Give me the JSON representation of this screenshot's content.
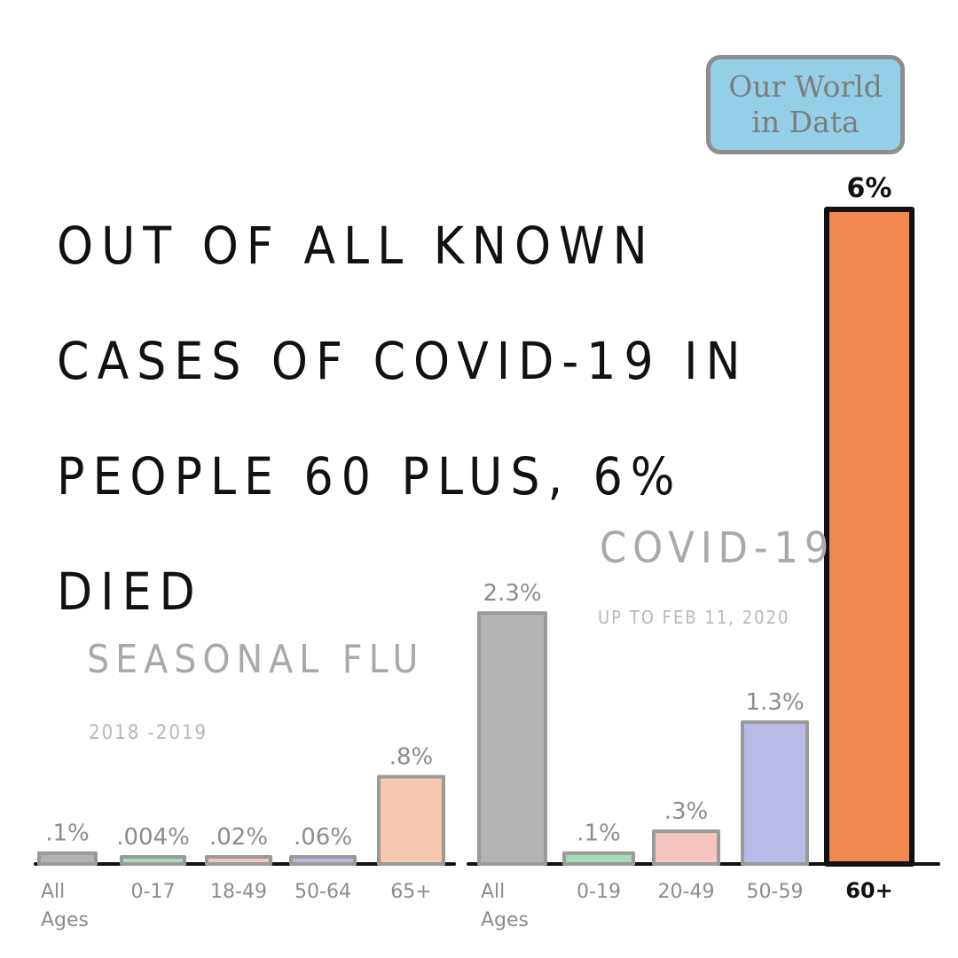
{
  "headline": "OUT OF ALL KNOWN CASES OF COVID-19 IN PEOPLE 60 PLUS, 6% DIED",
  "source": {
    "line1": "Our World",
    "line2": "in Data"
  },
  "groups": {
    "flu": {
      "title": "SEASONAL FLU",
      "subtitle": "2018 -2019"
    },
    "covid": {
      "title": "COVID-19",
      "subtitle": "UP TO FEB 11, 2020"
    }
  },
  "chart_data": {
    "type": "bar",
    "unit": "%",
    "ylim": [
      0,
      6
    ],
    "grid": false,
    "legend": "none",
    "groups": [
      {
        "name": "SEASONAL FLU",
        "period": "2018 -2019",
        "bars": [
          {
            "category": "All Ages",
            "value": 0.1,
            "label": ".1%",
            "color": "#b3b3b3"
          },
          {
            "category": "0-17",
            "value": 0.004,
            "label": ".004%",
            "color": "#a8dcbb"
          },
          {
            "category": "18-49",
            "value": 0.02,
            "label": ".02%",
            "color": "#f6c5c0"
          },
          {
            "category": "50-64",
            "value": 0.06,
            "label": ".06%",
            "color": "#b9bbe6"
          },
          {
            "category": "65+",
            "value": 0.8,
            "label": ".8%",
            "color": "#f6c8ae"
          }
        ]
      },
      {
        "name": "COVID-19",
        "period": "UP TO FEB 11, 2020",
        "bars": [
          {
            "category": "All Ages",
            "value": 2.3,
            "label": "2.3%",
            "color": "#b3b3b3"
          },
          {
            "category": "0-19",
            "value": 0.1,
            "label": ".1%",
            "color": "#a8dcbb"
          },
          {
            "category": "20-49",
            "value": 0.3,
            "label": ".3%",
            "color": "#f6c5c0"
          },
          {
            "category": "50-59",
            "value": 1.3,
            "label": "1.3%",
            "color": "#b9bbe6"
          },
          {
            "category": "60+",
            "value": 6,
            "label": "6%",
            "color": "#f0884f",
            "highlight": true
          }
        ]
      }
    ]
  }
}
